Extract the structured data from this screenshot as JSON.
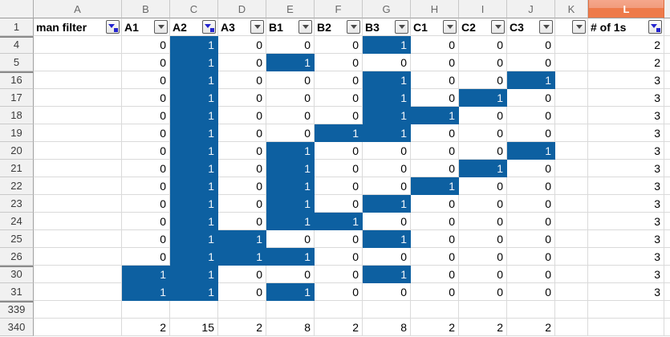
{
  "spreadsheet": {
    "column_header_bar": {
      "columns": [
        {
          "letter": "A",
          "selected": false
        },
        {
          "letter": "B",
          "selected": false
        },
        {
          "letter": "C",
          "selected": false
        },
        {
          "letter": "D",
          "selected": false
        },
        {
          "letter": "E",
          "selected": false
        },
        {
          "letter": "F",
          "selected": false
        },
        {
          "letter": "G",
          "selected": false
        },
        {
          "letter": "H",
          "selected": false
        },
        {
          "letter": "I",
          "selected": false
        },
        {
          "letter": "J",
          "selected": false
        },
        {
          "letter": "K",
          "selected": false
        },
        {
          "letter": "L",
          "selected": true
        }
      ]
    },
    "header_row": {
      "row_number": "1",
      "cells": [
        {
          "column": "A",
          "label": "man filter",
          "filter_state": "active"
        },
        {
          "column": "B",
          "label": "A1",
          "filter_state": "inactive"
        },
        {
          "column": "C",
          "label": "A2",
          "filter_state": "active"
        },
        {
          "column": "D",
          "label": "A3",
          "filter_state": "inactive"
        },
        {
          "column": "E",
          "label": "B1",
          "filter_state": "inactive"
        },
        {
          "column": "F",
          "label": "B2",
          "filter_state": "inactive"
        },
        {
          "column": "G",
          "label": "B3",
          "filter_state": "inactive"
        },
        {
          "column": "H",
          "label": "C1",
          "filter_state": "inactive"
        },
        {
          "column": "I",
          "label": "C2",
          "filter_state": "inactive"
        },
        {
          "column": "J",
          "label": "C3",
          "filter_state": "inactive"
        },
        {
          "column": "K",
          "label": "",
          "filter_state": "inactive"
        },
        {
          "column": "L",
          "label": "# of 1s",
          "filter_state": "active"
        }
      ]
    },
    "data_rows": [
      {
        "row_number": "4",
        "hidden_rows_above": true,
        "cells": [
          "",
          "0",
          "1",
          "0",
          "0",
          "0",
          "1",
          "0",
          "0",
          "0",
          "",
          "2"
        ]
      },
      {
        "row_number": "5",
        "hidden_rows_above": false,
        "cells": [
          "",
          "0",
          "1",
          "0",
          "1",
          "0",
          "0",
          "0",
          "0",
          "0",
          "",
          "2"
        ]
      },
      {
        "row_number": "16",
        "hidden_rows_above": true,
        "cells": [
          "",
          "0",
          "1",
          "0",
          "0",
          "0",
          "1",
          "0",
          "0",
          "1",
          "",
          "3"
        ]
      },
      {
        "row_number": "17",
        "hidden_rows_above": false,
        "cells": [
          "",
          "0",
          "1",
          "0",
          "0",
          "0",
          "1",
          "0",
          "1",
          "0",
          "",
          "3"
        ]
      },
      {
        "row_number": "18",
        "hidden_rows_above": false,
        "cells": [
          "",
          "0",
          "1",
          "0",
          "0",
          "0",
          "1",
          "1",
          "0",
          "0",
          "",
          "3"
        ]
      },
      {
        "row_number": "19",
        "hidden_rows_above": false,
        "cells": [
          "",
          "0",
          "1",
          "0",
          "0",
          "1",
          "1",
          "0",
          "0",
          "0",
          "",
          "3"
        ]
      },
      {
        "row_number": "20",
        "hidden_rows_above": false,
        "cells": [
          "",
          "0",
          "1",
          "0",
          "1",
          "0",
          "0",
          "0",
          "0",
          "1",
          "",
          "3"
        ]
      },
      {
        "row_number": "21",
        "hidden_rows_above": false,
        "cells": [
          "",
          "0",
          "1",
          "0",
          "1",
          "0",
          "0",
          "0",
          "1",
          "0",
          "",
          "3"
        ]
      },
      {
        "row_number": "22",
        "hidden_rows_above": false,
        "cells": [
          "",
          "0",
          "1",
          "0",
          "1",
          "0",
          "0",
          "1",
          "0",
          "0",
          "",
          "3"
        ]
      },
      {
        "row_number": "23",
        "hidden_rows_above": false,
        "cells": [
          "",
          "0",
          "1",
          "0",
          "1",
          "0",
          "1",
          "0",
          "0",
          "0",
          "",
          "3"
        ]
      },
      {
        "row_number": "24",
        "hidden_rows_above": false,
        "cells": [
          "",
          "0",
          "1",
          "0",
          "1",
          "1",
          "0",
          "0",
          "0",
          "0",
          "",
          "3"
        ]
      },
      {
        "row_number": "25",
        "hidden_rows_above": false,
        "cells": [
          "",
          "0",
          "1",
          "1",
          "0",
          "0",
          "1",
          "0",
          "0",
          "0",
          "",
          "3"
        ]
      },
      {
        "row_number": "26",
        "hidden_rows_above": false,
        "cells": [
          "",
          "0",
          "1",
          "1",
          "1",
          "0",
          "0",
          "0",
          "0",
          "0",
          "",
          "3"
        ]
      },
      {
        "row_number": "30",
        "hidden_rows_above": true,
        "cells": [
          "",
          "1",
          "1",
          "0",
          "0",
          "0",
          "1",
          "0",
          "0",
          "0",
          "",
          "3"
        ]
      },
      {
        "row_number": "31",
        "hidden_rows_above": false,
        "cells": [
          "",
          "1",
          "1",
          "0",
          "1",
          "0",
          "0",
          "0",
          "0",
          "0",
          "",
          "3"
        ]
      },
      {
        "row_number": "339",
        "hidden_rows_above": true,
        "cells": [
          "",
          "",
          "",
          "",
          "",
          "",
          "",
          "",
          "",
          "",
          "",
          ""
        ]
      },
      {
        "row_number": "340",
        "hidden_rows_above": false,
        "cells": [
          "",
          "2",
          "15",
          "2",
          "8",
          "2",
          "8",
          "2",
          "2",
          "2",
          "",
          ""
        ]
      }
    ],
    "colors": {
      "highlight_fill": "#0d60a1",
      "highlight_text": "#eff5fa",
      "active_filter_blue": "#2323ce",
      "selected_column_header": "#ee7a4a"
    }
  }
}
